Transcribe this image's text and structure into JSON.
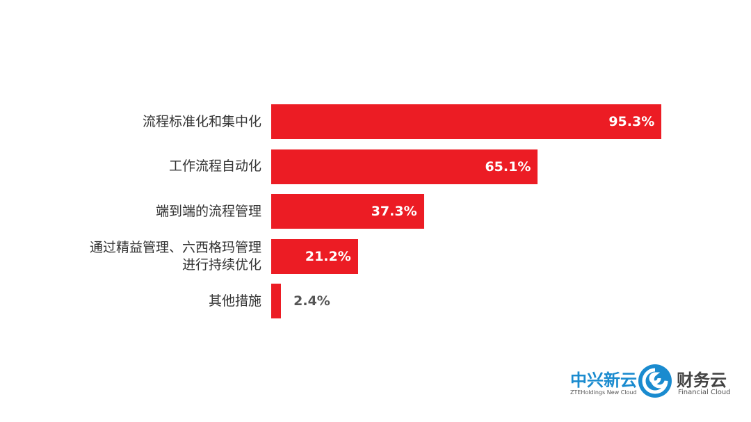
{
  "chart_data": {
    "type": "hbar",
    "categories": [
      "流程标准化和集中化",
      "工作流程自动化",
      "端到端的流程管理",
      "通过精益管理、六西格玛管理进行持续优化",
      "其他措施"
    ],
    "values": [
      95.3,
      65.1,
      37.3,
      21.2,
      2.4
    ],
    "value_labels": [
      "95.3%",
      "65.1%",
      "37.3%",
      "21.2%",
      "2.4%"
    ],
    "color": "#ec1c24"
  },
  "logo": {
    "left_title": "中兴新云",
    "left_subtitle": "ZTEHoldings New Cloud",
    "right_title": "财务云",
    "right_subtitle": "Financial Cloud"
  }
}
